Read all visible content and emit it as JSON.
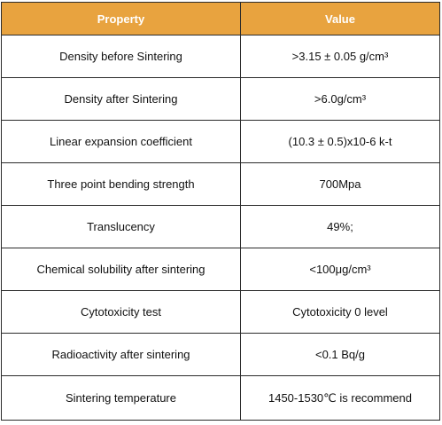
{
  "table": {
    "headers": {
      "property": "Property",
      "value": "Value"
    },
    "header_color": "#e8a33f",
    "rows": [
      {
        "property": "Density before Sintering",
        "value": ">3.15 ±  0.05 g/cm³"
      },
      {
        "property": "Density after Sintering",
        "value": ">6.0g/cm³"
      },
      {
        "property": "Linear expansion coefficient",
        "value": "(10.3  ± 0.5)x10-6 k-t"
      },
      {
        "property": "Three point bending strength",
        "value": "700Mpa"
      },
      {
        "property": "Translucency",
        "value": "49%;"
      },
      {
        "property": "Chemical solubility after sintering",
        "value": "<100μg/cm³"
      },
      {
        "property": "Cytotoxicity test",
        "value": "Cytotoxicity 0 level"
      },
      {
        "property": "Radioactivity after sintering",
        "value": "<0.1  Bq/g"
      },
      {
        "property": "Sintering temperature",
        "value": "1450-1530℃  is recommend"
      }
    ]
  }
}
